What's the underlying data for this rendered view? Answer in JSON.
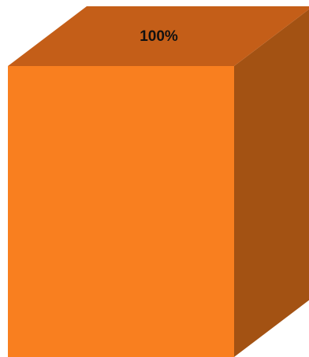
{
  "chart_data": {
    "type": "bar",
    "style": "3d-column",
    "categories": [
      ""
    ],
    "values": [
      100
    ],
    "data_labels": [
      "100%"
    ],
    "ylim": [
      0,
      100
    ],
    "grid": false,
    "legend": "none"
  },
  "colors": {
    "front": "#F97F1F",
    "top": "#C45E18",
    "side": "#A35213",
    "label": "#111111",
    "background": "#FFFFFF"
  }
}
